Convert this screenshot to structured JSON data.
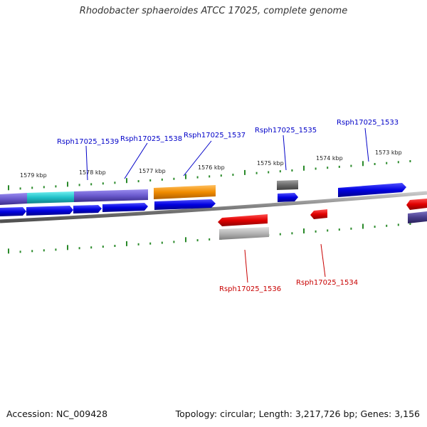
{
  "title": "Rhodobacter sphaeroides ATCC 17025, complete genome",
  "footer": {
    "accession": "Accession: NC_009428",
    "summary": "Topology: circular; Length: 3,217,726 bp; Genes: 3,156"
  },
  "colors": {
    "forward_gene": "#0000e0",
    "reverse_gene": "#e00000",
    "label_forward": "#0000c8",
    "label_reverse": "#c80000",
    "tick": "#2a8a2a",
    "backbone": "#808080",
    "feature_purple": "#6a5acd",
    "feature_cyan": "#20c0c8",
    "feature_orange": "#f08c00",
    "feature_gray": "#707070",
    "feature_lightgray": "#b0b0b0",
    "feature_darkpurple": "#483d8b"
  },
  "scale_labels": [
    "1579 kbp",
    "1578 kbp",
    "1577 kbp",
    "1576 kbp",
    "1575 kbp",
    "1574 kbp",
    "1573 kbp"
  ],
  "forward_labels": [
    "Rsph17025_1539",
    "Rsph17025_1538",
    "Rsph17025_1537",
    "Rsph17025_1535",
    "Rsph17025_1533"
  ],
  "reverse_labels": [
    "Rsph17025_1536",
    "Rsph17025_1534"
  ]
}
